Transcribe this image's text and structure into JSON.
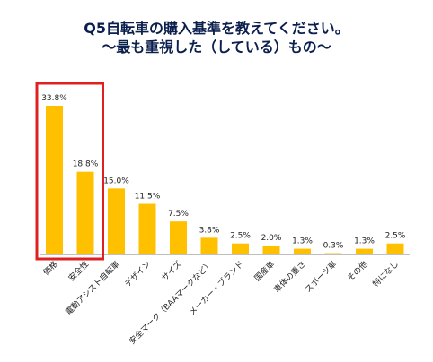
{
  "title_line1": "Q5自転車の購入基準を教えてください。",
  "title_line2": "～最も重視した（している）もの～",
  "chart_data": {
    "type": "bar",
    "categories": [
      "価格",
      "安全性",
      "電動アシスト自転車",
      "デザイン",
      "サイズ",
      "安全マーク（BAAマークなど）",
      "メーカー・ブランド",
      "国産車",
      "車体の重さ",
      "スポーツ車",
      "その他",
      "特になし"
    ],
    "values": [
      33.8,
      18.8,
      15.0,
      11.5,
      7.5,
      3.8,
      2.5,
      2.0,
      1.3,
      0.3,
      1.3,
      2.5
    ],
    "value_labels": [
      "33.8%",
      "18.8%",
      "15.0%",
      "11.5%",
      "7.5%",
      "3.8%",
      "2.5%",
      "2.0%",
      "1.3%",
      "0.3%",
      "1.3%",
      "2.5%"
    ],
    "title": "Q5自転車の購入基準を教えてください。",
    "subtitle": "～最も重視した（している）もの～",
    "grid": false,
    "highlight_categories": [
      "価格",
      "安全性"
    ],
    "bar_color": "#ffc000",
    "highlight_color": "#e02020"
  }
}
